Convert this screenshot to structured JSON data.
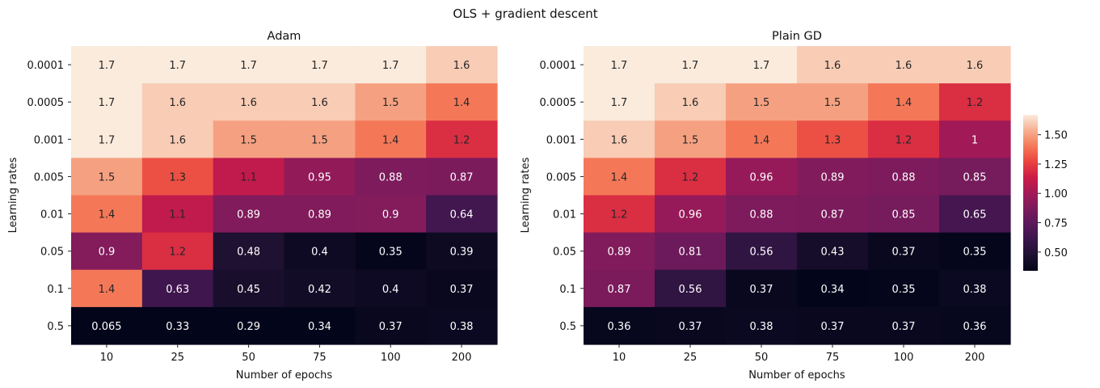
{
  "title": "OLS + gradient descent",
  "colorbar": {
    "min": 0.34,
    "max": 1.67,
    "ticks": [
      0.5,
      0.75,
      1.0,
      1.25,
      1.5
    ],
    "tick_labels": [
      "0.50",
      "0.75",
      "1.00",
      "1.25",
      "1.50"
    ]
  },
  "chart_data": [
    {
      "type": "heatmap",
      "title": "Adam",
      "xlabel": "Number of epochs",
      "ylabel": "Learning rates",
      "x": [
        "10",
        "25",
        "50",
        "75",
        "100",
        "200"
      ],
      "y": [
        "0.0001",
        "0.0005",
        "0.001",
        "0.005",
        "0.01",
        "0.05",
        "0.1",
        "0.5"
      ],
      "values": [
        [
          1.7,
          1.7,
          1.7,
          1.7,
          1.7,
          1.6
        ],
        [
          1.7,
          1.6,
          1.6,
          1.6,
          1.5,
          1.4
        ],
        [
          1.7,
          1.6,
          1.5,
          1.5,
          1.4,
          1.2
        ],
        [
          1.5,
          1.3,
          1.1,
          0.95,
          0.88,
          0.87
        ],
        [
          1.4,
          1.1,
          0.89,
          0.89,
          0.9,
          0.64
        ],
        [
          0.9,
          1.2,
          0.48,
          0.4,
          0.35,
          0.39
        ],
        [
          1.4,
          0.63,
          0.45,
          0.42,
          0.4,
          0.37
        ],
        [
          0.065,
          0.33,
          0.29,
          0.34,
          0.37,
          0.38
        ]
      ],
      "labels": [
        [
          "1.7",
          "1.7",
          "1.7",
          "1.7",
          "1.7",
          "1.6"
        ],
        [
          "1.7",
          "1.6",
          "1.6",
          "1.6",
          "1.5",
          "1.4"
        ],
        [
          "1.7",
          "1.6",
          "1.5",
          "1.5",
          "1.4",
          "1.2"
        ],
        [
          "1.5",
          "1.3",
          "1.1",
          "0.95",
          "0.88",
          "0.87"
        ],
        [
          "1.4",
          "1.1",
          "0.89",
          "0.89",
          "0.9",
          "0.64"
        ],
        [
          "0.9",
          "1.2",
          "0.48",
          "0.4",
          "0.35",
          "0.39"
        ],
        [
          "1.4",
          "0.63",
          "0.45",
          "0.42",
          "0.4",
          "0.37"
        ],
        [
          "0.065",
          "0.33",
          "0.29",
          "0.34",
          "0.37",
          "0.38"
        ]
      ]
    },
    {
      "type": "heatmap",
      "title": "Plain GD",
      "xlabel": "Number of epochs",
      "ylabel": "Learning rates",
      "x": [
        "10",
        "25",
        "50",
        "75",
        "100",
        "200"
      ],
      "y": [
        "0.0001",
        "0.0005",
        "0.001",
        "0.005",
        "0.01",
        "0.05",
        "0.1",
        "0.5"
      ],
      "values": [
        [
          1.7,
          1.7,
          1.7,
          1.6,
          1.6,
          1.6
        ],
        [
          1.7,
          1.6,
          1.5,
          1.5,
          1.4,
          1.2
        ],
        [
          1.6,
          1.5,
          1.4,
          1.3,
          1.2,
          1.0
        ],
        [
          1.4,
          1.2,
          0.96,
          0.89,
          0.88,
          0.85
        ],
        [
          1.2,
          0.96,
          0.88,
          0.87,
          0.85,
          0.65
        ],
        [
          0.89,
          0.81,
          0.56,
          0.43,
          0.37,
          0.35
        ],
        [
          0.87,
          0.56,
          0.37,
          0.34,
          0.35,
          0.38
        ],
        [
          0.36,
          0.37,
          0.38,
          0.37,
          0.37,
          0.36
        ]
      ],
      "labels": [
        [
          "1.7",
          "1.7",
          "1.7",
          "1.6",
          "1.6",
          "1.6"
        ],
        [
          "1.7",
          "1.6",
          "1.5",
          "1.5",
          "1.4",
          "1.2"
        ],
        [
          "1.6",
          "1.5",
          "1.4",
          "1.3",
          "1.2",
          "1"
        ],
        [
          "1.4",
          "1.2",
          "0.96",
          "0.89",
          "0.88",
          "0.85"
        ],
        [
          "1.2",
          "0.96",
          "0.88",
          "0.87",
          "0.85",
          "0.65"
        ],
        [
          "0.89",
          "0.81",
          "0.56",
          "0.43",
          "0.37",
          "0.35"
        ],
        [
          "0.87",
          "0.56",
          "0.37",
          "0.34",
          "0.35",
          "0.38"
        ],
        [
          "0.36",
          "0.37",
          "0.38",
          "0.37",
          "0.37",
          "0.36"
        ]
      ]
    }
  ]
}
